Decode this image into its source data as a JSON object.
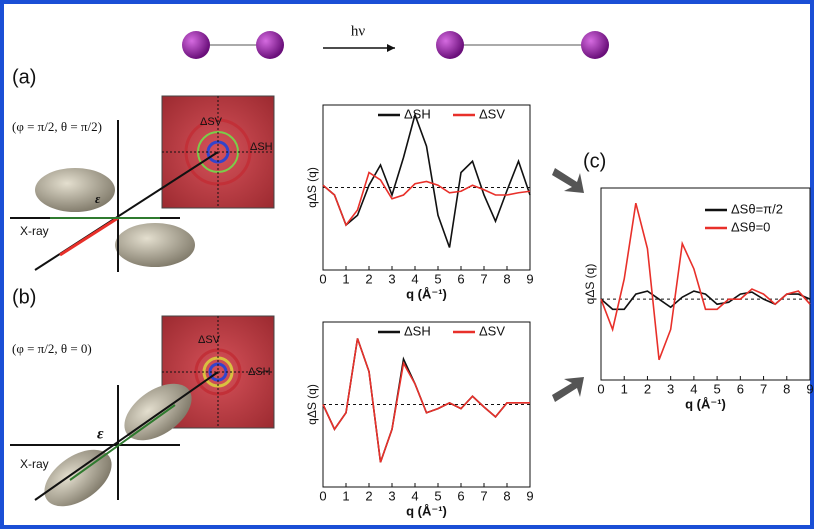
{
  "header": {
    "photon": "hν"
  },
  "panel_a": {
    "label": "(a)",
    "polarization": "(φ = π/2,  θ = π/2)",
    "xray": "X-ray",
    "epsilon": "ε",
    "image_v": "ΔSV",
    "image_h": "ΔSH"
  },
  "panel_b": {
    "label": "(b)",
    "polarization": "(φ = π/2,  θ = 0)",
    "xray": "X-ray",
    "epsilon": "ε",
    "image_v": "ΔSV",
    "image_h": "ΔSH"
  },
  "panel_c": {
    "label": "(c)"
  },
  "chart_data": [
    {
      "type": "line",
      "xlabel": "q (Å⁻¹)",
      "ylabel": "qΔS (q)",
      "x": [
        0,
        0.5,
        1,
        1.5,
        2,
        2.5,
        3,
        3.5,
        4,
        4.5,
        5,
        5.5,
        6,
        6.5,
        7,
        7.5,
        8,
        8.5,
        9
      ],
      "xlim": [
        0,
        9
      ],
      "xticks": [
        0,
        1,
        2,
        3,
        4,
        5,
        6,
        7,
        8,
        9
      ],
      "ylim": [
        -1.1,
        1.1
      ],
      "series": [
        {
          "name": "ΔSH",
          "color": "#111111",
          "values": [
            0.03,
            -0.1,
            -0.5,
            -0.37,
            0.03,
            0.3,
            -0.1,
            0.4,
            0.97,
            0.55,
            -0.37,
            -0.8,
            0.2,
            0.35,
            -0.1,
            -0.45,
            -0.04,
            0.35,
            -0.1
          ]
        },
        {
          "name": "ΔSV",
          "color": "#e8302a",
          "values": [
            0.03,
            -0.1,
            -0.5,
            -0.3,
            0.2,
            0.1,
            -0.15,
            -0.1,
            0.05,
            0.08,
            0.03,
            -0.07,
            -0.05,
            0.03,
            -0.03,
            -0.1,
            -0.1,
            -0.07,
            -0.05
          ]
        }
      ]
    },
    {
      "type": "line",
      "xlabel": "q (Å⁻¹)",
      "ylabel": "qΔS (q)",
      "x": [
        0,
        0.5,
        1,
        1.5,
        2,
        2.5,
        3,
        3.5,
        4,
        4.5,
        5,
        5.5,
        6,
        6.5,
        7,
        7.5,
        8,
        8.5,
        9
      ],
      "xlim": [
        0,
        9
      ],
      "xticks": [
        0,
        1,
        2,
        3,
        4,
        5,
        6,
        7,
        8,
        9
      ],
      "ylim": [
        -1.0,
        1.0
      ],
      "series": [
        {
          "name": "ΔSH",
          "color": "#111111",
          "values": [
            0,
            -0.3,
            -0.1,
            0.8,
            0.4,
            -0.7,
            -0.3,
            0.55,
            0.25,
            -0.1,
            -0.05,
            0.02,
            -0.05,
            0.1,
            -0.03,
            -0.15,
            0.02,
            0.02,
            0.02
          ]
        },
        {
          "name": "ΔSV",
          "color": "#e8302a",
          "values": [
            0,
            -0.3,
            -0.1,
            0.8,
            0.4,
            -0.7,
            -0.3,
            0.5,
            0.25,
            -0.1,
            -0.05,
            0.02,
            -0.05,
            0.1,
            -0.03,
            -0.15,
            0.02,
            0.02,
            0.02
          ]
        }
      ]
    },
    {
      "type": "line",
      "xlabel": "q (Å⁻¹)",
      "ylabel": "qΔS (q)",
      "x": [
        0,
        0.5,
        1,
        1.5,
        2,
        2.5,
        3,
        3.5,
        4,
        4.5,
        5,
        5.5,
        6,
        6.5,
        7,
        7.5,
        8,
        8.5,
        9
      ],
      "xlim": [
        0,
        9
      ],
      "xticks": [
        0,
        1,
        2,
        3,
        4,
        5,
        6,
        7,
        8,
        9
      ],
      "ylim": [
        -0.8,
        1.1
      ],
      "series": [
        {
          "name": "ΔSθ=π/2",
          "color": "#111111",
          "values": [
            0,
            -0.1,
            -0.1,
            0.05,
            0.08,
            0,
            -0.08,
            0.02,
            0.08,
            0.05,
            -0.05,
            -0.03,
            0.05,
            0.07,
            0,
            -0.05,
            0.05,
            0.05,
            0
          ]
        },
        {
          "name": "ΔSθ=0",
          "color": "#e8302a",
          "values": [
            0,
            -0.3,
            0.2,
            0.95,
            0.5,
            -0.6,
            -0.3,
            0.55,
            0.3,
            -0.1,
            -0.1,
            0,
            0,
            0.1,
            0.05,
            -0.05,
            0.05,
            0.08,
            -0.05
          ]
        }
      ]
    }
  ]
}
